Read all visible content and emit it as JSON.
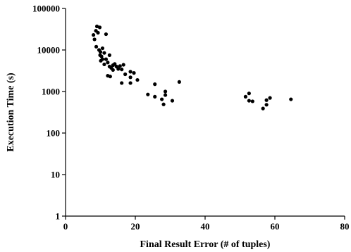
{
  "chart_data": {
    "type": "scatter",
    "xlabel": "Final Result Error (# of tuples)",
    "ylabel": "Execution Time (s)",
    "xlim": [
      0,
      80
    ],
    "ylim": [
      1,
      100000
    ],
    "yscale": "log",
    "x_ticks": [
      "0",
      "20",
      "40",
      "60",
      "80"
    ],
    "y_ticks": [
      "1",
      "10",
      "100",
      "1000",
      "10000",
      "100000"
    ],
    "grid": false,
    "legend": "none",
    "marker_color": "#000000",
    "points": [
      {
        "x": 8,
        "y": 23000
      },
      {
        "x": 8.3,
        "y": 18000
      },
      {
        "x": 8.7,
        "y": 29000
      },
      {
        "x": 9,
        "y": 37000
      },
      {
        "x": 9.3,
        "y": 26000
      },
      {
        "x": 9.8,
        "y": 35000
      },
      {
        "x": 8.8,
        "y": 12000
      },
      {
        "x": 9.6,
        "y": 10000
      },
      {
        "x": 10,
        "y": 9000
      },
      {
        "x": 10.6,
        "y": 11000
      },
      {
        "x": 10.3,
        "y": 7000
      },
      {
        "x": 9.9,
        "y": 7500
      },
      {
        "x": 11.1,
        "y": 8500
      },
      {
        "x": 10.6,
        "y": 6000
      },
      {
        "x": 10.1,
        "y": 5500
      },
      {
        "x": 11.6,
        "y": 24000
      },
      {
        "x": 11.6,
        "y": 6000
      },
      {
        "x": 11.1,
        "y": 4500
      },
      {
        "x": 12.1,
        "y": 5000
      },
      {
        "x": 12.6,
        "y": 7500
      },
      {
        "x": 12.6,
        "y": 4000
      },
      {
        "x": 13.1,
        "y": 3700
      },
      {
        "x": 13.6,
        "y": 4300
      },
      {
        "x": 14.1,
        "y": 4600
      },
      {
        "x": 14.6,
        "y": 4000
      },
      {
        "x": 15.6,
        "y": 4100
      },
      {
        "x": 16.1,
        "y": 3400
      },
      {
        "x": 13.6,
        "y": 3300
      },
      {
        "x": 12.1,
        "y": 2400
      },
      {
        "x": 12.8,
        "y": 2300
      },
      {
        "x": 15.1,
        "y": 3500
      },
      {
        "x": 16.6,
        "y": 4400
      },
      {
        "x": 17.1,
        "y": 2600
      },
      {
        "x": 18.6,
        "y": 3000
      },
      {
        "x": 19.6,
        "y": 2800
      },
      {
        "x": 18.6,
        "y": 2200
      },
      {
        "x": 16.1,
        "y": 1600
      },
      {
        "x": 18.6,
        "y": 1600
      },
      {
        "x": 20.6,
        "y": 1900
      },
      {
        "x": 23.6,
        "y": 850
      },
      {
        "x": 25.6,
        "y": 1500
      },
      {
        "x": 25.6,
        "y": 750
      },
      {
        "x": 27.6,
        "y": 650
      },
      {
        "x": 28.6,
        "y": 1000
      },
      {
        "x": 28.1,
        "y": 490
      },
      {
        "x": 28.6,
        "y": 820
      },
      {
        "x": 30.6,
        "y": 600
      },
      {
        "x": 32.6,
        "y": 1700
      },
      {
        "x": 51.6,
        "y": 750
      },
      {
        "x": 52.6,
        "y": 900
      },
      {
        "x": 52.6,
        "y": 600
      },
      {
        "x": 53.6,
        "y": 580
      },
      {
        "x": 56.6,
        "y": 390
      },
      {
        "x": 57.6,
        "y": 480
      },
      {
        "x": 57.6,
        "y": 620
      },
      {
        "x": 58.6,
        "y": 700
      },
      {
        "x": 64.6,
        "y": 650
      }
    ]
  }
}
